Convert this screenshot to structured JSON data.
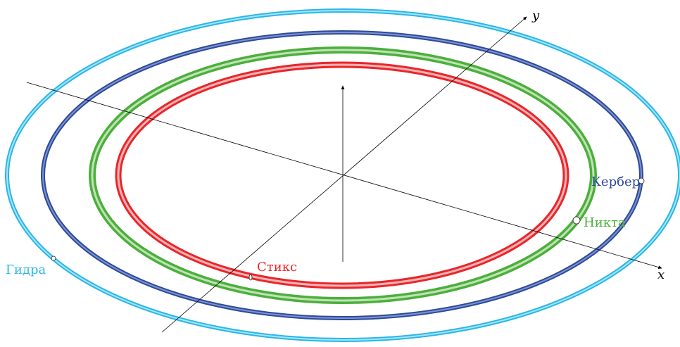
{
  "axes": {
    "x_label": "x",
    "y_label": "y"
  },
  "orbits": [
    {
      "name": "Гидра",
      "color": "#29b7e8",
      "glow": "#a8e4f8"
    },
    {
      "name": "Кербер",
      "color": "#2d4a9c",
      "glow": "#7e93cc"
    },
    {
      "name": "Никта",
      "color": "#4caf3c",
      "glow": "#bfe3b5"
    },
    {
      "name": "Стикс",
      "color": "#e8262a",
      "glow": "#f7b3b5"
    }
  ]
}
